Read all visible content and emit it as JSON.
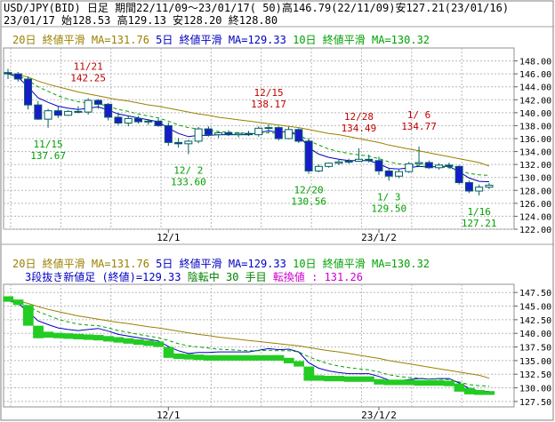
{
  "header": {
    "line1": "USD/JPY(BID) 日足 期間22/11/09〜23/01/17( 50)高146.79(22/11/09)安127.21(23/01/16)",
    "line2": "23/01/17  始128.53 高129.13 安128.20 終128.80"
  },
  "top_panel": {
    "ma20_label": "20日 終値平滑 MA=131.76",
    "ma5_label": "5日 終値平滑 MA=129.33",
    "ma10_label": "10日 終値平滑 MA=130.32"
  },
  "bottom_panel": {
    "ma20_label": "20日 終値平滑 MA=131.76",
    "ma5_label": "5日 終値平滑 MA=129.33",
    "ma10_label": "10日 終値平滑 MA=130.32",
    "subtitle_prefix": "3段抜き新値足 (終値)=129.33",
    "subtitle_status": "陰転中",
    "subtitle_count": "30 手目",
    "subtitle_reversal": "転換値 : 131.26"
  },
  "colors": {
    "ma20": "#9a8000",
    "ma5": "#0000c0",
    "ma10": "#00a000",
    "candle": "#006060",
    "bullish_fill": "#ffffff",
    "bearish_fill": "#1a1acc",
    "annotation_high": "#c00000",
    "annotation_low": "#00a000",
    "grid": "#b8b8b8",
    "newvalue_block": "#22cc22",
    "status_text": "#008000",
    "reversal_text": "#cc00cc"
  },
  "chart_data": [
    {
      "type": "candlestick",
      "ylim": [
        122,
        150
      ],
      "yticks": [
        "148.00",
        "146.00",
        "144.00",
        "142.00",
        "140.00",
        "138.00",
        "136.00",
        "134.00",
        "132.00",
        "130.00",
        "128.00",
        "126.00",
        "124.00",
        "122.00"
      ],
      "x_tick_labels": [
        {
          "index": 16,
          "label": "12/1"
        },
        {
          "index": 37,
          "label": "23/1/2"
        }
      ],
      "ohlc": [
        [
          146.2,
          146.79,
          145.2,
          146.0
        ],
        [
          146.0,
          146.3,
          144.8,
          145.2
        ],
        [
          145.2,
          145.6,
          140.5,
          141.2
        ],
        [
          141.2,
          141.8,
          138.9,
          139.0
        ],
        [
          139.0,
          140.6,
          137.67,
          140.3
        ],
        [
          140.3,
          140.9,
          139.2,
          139.6
        ],
        [
          139.6,
          140.4,
          139.5,
          140.2
        ],
        [
          140.2,
          141.0,
          139.9,
          140.1
        ],
        [
          140.1,
          142.25,
          139.7,
          141.9
        ],
        [
          141.9,
          142.1,
          140.6,
          141.3
        ],
        [
          141.3,
          141.5,
          138.8,
          139.3
        ],
        [
          139.3,
          140.0,
          138.1,
          138.4
        ],
        [
          138.4,
          139.6,
          137.9,
          139.1
        ],
        [
          139.1,
          139.5,
          138.3,
          138.6
        ],
        [
          138.6,
          139.0,
          138.1,
          138.7
        ],
        [
          138.7,
          139.1,
          137.8,
          138.0
        ],
        [
          138.0,
          138.5,
          134.9,
          135.4
        ],
        [
          135.4,
          136.1,
          134.6,
          135.2
        ],
        [
          135.2,
          135.8,
          133.6,
          135.6
        ],
        [
          135.6,
          137.8,
          135.3,
          137.5
        ],
        [
          137.5,
          137.9,
          136.3,
          136.6
        ],
        [
          136.6,
          137.1,
          136.1,
          136.9
        ],
        [
          136.9,
          137.3,
          136.4,
          136.6
        ],
        [
          136.6,
          137.0,
          136.2,
          136.8
        ],
        [
          136.8,
          137.2,
          136.4,
          136.6
        ],
        [
          136.6,
          137.9,
          136.3,
          137.6
        ],
        [
          137.6,
          138.17,
          137.0,
          137.7
        ],
        [
          137.7,
          137.9,
          135.7,
          136.0
        ],
        [
          136.0,
          137.8,
          135.9,
          137.4
        ],
        [
          137.4,
          137.6,
          135.3,
          135.6
        ],
        [
          135.6,
          136.1,
          130.56,
          131.0
        ],
        [
          131.0,
          132.0,
          130.8,
          131.7
        ],
        [
          131.7,
          132.3,
          131.5,
          132.2
        ],
        [
          132.2,
          132.7,
          131.9,
          132.4
        ],
        [
          132.4,
          132.9,
          132.1,
          132.5
        ],
        [
          132.5,
          134.49,
          132.4,
          132.8
        ],
        [
          132.8,
          133.5,
          132.3,
          132.6
        ],
        [
          132.6,
          133.2,
          130.4,
          131.0
        ],
        [
          131.0,
          131.5,
          129.5,
          130.2
        ],
        [
          130.2,
          131.2,
          129.9,
          130.9
        ],
        [
          130.9,
          132.4,
          130.7,
          132.1
        ],
        [
          132.1,
          134.77,
          131.9,
          132.3
        ],
        [
          132.3,
          132.6,
          131.3,
          131.5
        ],
        [
          131.5,
          132.2,
          131.2,
          131.9
        ],
        [
          131.9,
          132.3,
          131.4,
          131.7
        ],
        [
          131.7,
          131.9,
          128.9,
          129.2
        ],
        [
          129.2,
          129.5,
          127.6,
          127.9
        ],
        [
          127.9,
          128.9,
          127.21,
          128.5
        ],
        [
          128.5,
          129.13,
          128.2,
          128.8
        ]
      ],
      "series": [
        {
          "name": "20日 終値平滑",
          "values": [
            146.0,
            145.9,
            145.5,
            144.9,
            144.4,
            144.0,
            143.6,
            143.2,
            142.9,
            142.6,
            142.3,
            142.0,
            141.8,
            141.5,
            141.2,
            141.0,
            140.7,
            140.4,
            140.1,
            139.8,
            139.6,
            139.3,
            139.1,
            138.9,
            138.7,
            138.5,
            138.3,
            138.1,
            137.9,
            137.7,
            137.4,
            137.1,
            136.8,
            136.6,
            136.3,
            136.0,
            135.7,
            135.4,
            135.0,
            134.7,
            134.4,
            134.1,
            133.8,
            133.5,
            133.2,
            132.9,
            132.6,
            132.3,
            131.76
          ]
        },
        {
          "name": "5日 終値平滑",
          "values": [
            146.0,
            145.5,
            144.0,
            142.3,
            141.6,
            141.0,
            140.7,
            140.5,
            140.7,
            140.9,
            140.4,
            139.8,
            139.5,
            139.2,
            138.9,
            138.6,
            137.6,
            136.8,
            136.3,
            136.5,
            136.5,
            136.6,
            136.6,
            136.6,
            136.6,
            136.9,
            137.2,
            137.0,
            137.1,
            136.6,
            134.6,
            133.6,
            133.1,
            132.8,
            132.6,
            132.6,
            132.6,
            132.1,
            131.4,
            131.3,
            131.5,
            131.7,
            131.6,
            131.7,
            131.7,
            130.9,
            129.9,
            129.4,
            129.33
          ]
        },
        {
          "name": "10日 終値平滑",
          "values": [
            146.0,
            145.8,
            145.0,
            144.0,
            143.3,
            142.6,
            142.1,
            141.7,
            141.5,
            141.4,
            141.0,
            140.5,
            140.2,
            139.8,
            139.5,
            139.2,
            138.7,
            138.1,
            137.7,
            137.5,
            137.3,
            137.1,
            137.0,
            136.9,
            136.8,
            136.8,
            136.9,
            136.8,
            136.8,
            136.6,
            135.7,
            135.0,
            134.4,
            134.0,
            133.7,
            133.5,
            133.3,
            132.9,
            132.4,
            132.1,
            131.9,
            131.8,
            131.6,
            131.6,
            131.5,
            131.1,
            130.6,
            130.4,
            130.32
          ]
        }
      ],
      "annotations": [
        {
          "index": 4,
          "date": "11/15",
          "value": "137.67",
          "kind": "low"
        },
        {
          "index": 8,
          "date": "11/21",
          "value": "142.25",
          "kind": "high"
        },
        {
          "index": 18,
          "date": "12/ 2",
          "value": "133.60",
          "kind": "low"
        },
        {
          "index": 26,
          "date": "12/15",
          "value": "138.17",
          "kind": "high"
        },
        {
          "index": 30,
          "date": "12/20",
          "value": "130.56",
          "kind": "low"
        },
        {
          "index": 35,
          "date": "12/28",
          "value": "134.49",
          "kind": "high"
        },
        {
          "index": 38,
          "date": "1/ 3",
          "value": "129.50",
          "kind": "low"
        },
        {
          "index": 41,
          "date": "1/ 6",
          "value": "134.77",
          "kind": "high"
        },
        {
          "index": 47,
          "date": "1/16",
          "value": "127.21",
          "kind": "low"
        }
      ]
    },
    {
      "type": "new-value-step",
      "ylim": [
        126.5,
        149
      ],
      "yticks": [
        "147.50",
        "145.00",
        "142.50",
        "140.00",
        "137.50",
        "135.00",
        "132.50",
        "130.00",
        "127.50"
      ],
      "x_tick_labels": [
        {
          "index": 16,
          "label": "12/1"
        },
        {
          "index": 37,
          "label": "23/1/2"
        }
      ],
      "steps": [
        [
          0,
          145.8,
          146.8
        ],
        [
          1,
          145.2,
          146.2
        ],
        [
          2,
          141.4,
          145.2
        ],
        [
          3,
          139.1,
          141.4
        ],
        [
          4,
          139.2,
          140.3
        ],
        [
          5,
          139.1,
          140.1
        ],
        [
          6,
          139.0,
          140.0
        ],
        [
          7,
          138.9,
          139.9
        ],
        [
          8,
          138.8,
          139.8
        ],
        [
          9,
          138.7,
          139.7
        ],
        [
          10,
          138.5,
          139.5
        ],
        [
          11,
          138.3,
          139.3
        ],
        [
          12,
          138.1,
          139.1
        ],
        [
          13,
          137.9,
          138.9
        ],
        [
          14,
          137.7,
          138.7
        ],
        [
          15,
          137.5,
          138.5
        ],
        [
          16,
          135.5,
          137.5
        ],
        [
          17,
          135.3,
          136.3
        ],
        [
          18,
          135.2,
          136.2
        ],
        [
          19,
          135.1,
          136.1
        ],
        [
          20,
          135.0,
          136.0
        ],
        [
          21,
          135.0,
          136.0
        ],
        [
          22,
          135.0,
          136.0
        ],
        [
          23,
          135.0,
          136.0
        ],
        [
          24,
          135.0,
          136.0
        ],
        [
          25,
          135.0,
          136.0
        ],
        [
          26,
          135.0,
          136.0
        ],
        [
          27,
          135.0,
          136.0
        ],
        [
          28,
          134.5,
          135.5
        ],
        [
          29,
          133.9,
          134.9
        ],
        [
          30,
          131.3,
          133.9
        ],
        [
          31,
          131.3,
          132.3
        ],
        [
          32,
          131.2,
          132.2
        ],
        [
          33,
          131.2,
          132.2
        ],
        [
          34,
          131.1,
          132.1
        ],
        [
          35,
          131.1,
          132.1
        ],
        [
          36,
          131.1,
          132.1
        ],
        [
          37,
          130.6,
          131.6
        ],
        [
          38,
          130.5,
          131.5
        ],
        [
          39,
          130.5,
          131.5
        ],
        [
          40,
          130.5,
          131.5
        ],
        [
          41,
          130.4,
          131.4
        ],
        [
          42,
          130.4,
          131.4
        ],
        [
          43,
          130.4,
          131.4
        ],
        [
          44,
          130.3,
          131.3
        ],
        [
          45,
          129.3,
          130.8
        ],
        [
          46,
          128.8,
          130.0
        ],
        [
          47,
          128.7,
          129.6
        ],
        [
          48,
          128.7,
          129.4
        ]
      ],
      "series": [
        {
          "name": "20日 終値平滑",
          "values": [
            146.0,
            145.9,
            145.5,
            144.9,
            144.4,
            144.0,
            143.6,
            143.2,
            142.9,
            142.6,
            142.3,
            142.0,
            141.8,
            141.5,
            141.2,
            141.0,
            140.7,
            140.4,
            140.1,
            139.8,
            139.6,
            139.3,
            139.1,
            138.9,
            138.7,
            138.5,
            138.3,
            138.1,
            137.9,
            137.7,
            137.4,
            137.1,
            136.8,
            136.6,
            136.3,
            136.0,
            135.7,
            135.4,
            135.0,
            134.7,
            134.4,
            134.1,
            133.8,
            133.5,
            133.2,
            132.9,
            132.6,
            132.3,
            131.76
          ]
        },
        {
          "name": "5日 終値平滑",
          "values": [
            146.0,
            145.5,
            144.0,
            142.3,
            141.6,
            141.0,
            140.7,
            140.5,
            140.7,
            140.9,
            140.4,
            139.8,
            139.5,
            139.2,
            138.9,
            138.6,
            137.6,
            136.8,
            136.3,
            136.5,
            136.5,
            136.6,
            136.6,
            136.6,
            136.6,
            136.9,
            137.2,
            137.0,
            137.1,
            136.6,
            134.6,
            133.6,
            133.1,
            132.8,
            132.6,
            132.6,
            132.6,
            132.1,
            131.4,
            131.3,
            131.5,
            131.7,
            131.6,
            131.7,
            131.7,
            130.9,
            129.9,
            129.4,
            129.33
          ]
        },
        {
          "name": "10日 終値平滑",
          "values": [
            146.0,
            145.8,
            145.0,
            144.0,
            143.3,
            142.6,
            142.1,
            141.7,
            141.5,
            141.4,
            141.0,
            140.5,
            140.2,
            139.8,
            139.5,
            139.2,
            138.7,
            138.1,
            137.7,
            137.5,
            137.3,
            137.1,
            137.0,
            136.9,
            136.8,
            136.8,
            136.9,
            136.8,
            136.8,
            136.6,
            135.7,
            135.0,
            134.4,
            134.0,
            133.7,
            133.5,
            133.3,
            132.9,
            132.4,
            132.1,
            131.9,
            131.8,
            131.6,
            131.6,
            131.5,
            131.1,
            130.6,
            130.4,
            130.32
          ]
        }
      ]
    }
  ]
}
